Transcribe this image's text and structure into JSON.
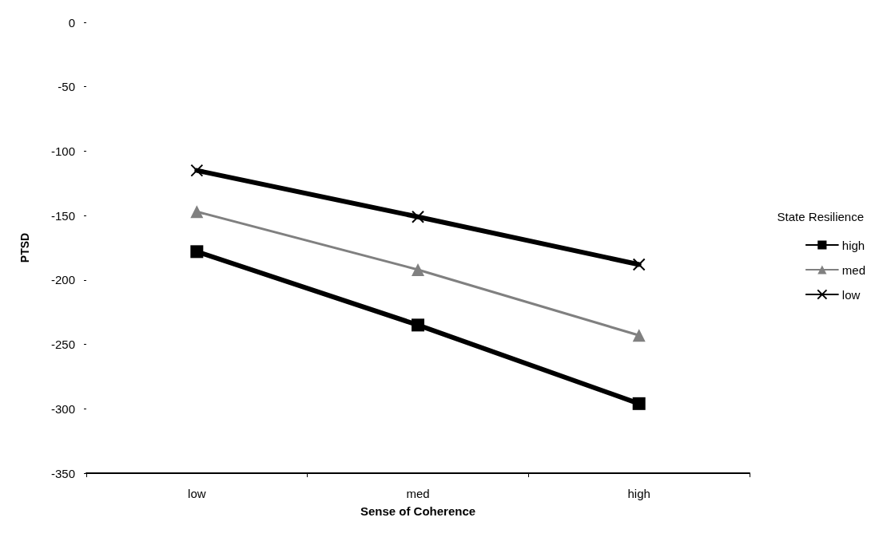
{
  "chart_data": {
    "type": "line",
    "xlabel": "Sense of Coherence",
    "ylabel": "PTSD",
    "legend_title": "State Resilience",
    "categories": [
      "low",
      "med",
      "high"
    ],
    "series": [
      {
        "name": "high",
        "color": "#000000",
        "marker": "square",
        "values": [
          -178,
          -235,
          -296
        ]
      },
      {
        "name": "med",
        "color": "#808080",
        "marker": "triangle",
        "values": [
          -147,
          -192,
          -243
        ]
      },
      {
        "name": "low",
        "color": "#000000",
        "marker": "cross",
        "values": [
          -115,
          -151,
          -188
        ]
      }
    ],
    "ylim": [
      -350,
      0
    ],
    "yticks": [
      0,
      -50,
      -100,
      -150,
      -200,
      -250,
      -300,
      -350
    ],
    "grid": false,
    "legend": "right"
  }
}
